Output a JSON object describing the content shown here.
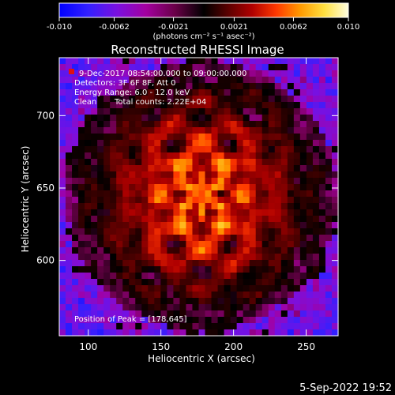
{
  "chart_data": {
    "type": "heatmap",
    "title": "Reconstructed RHESSI Image",
    "xlabel": "Heliocentric X (arcsec)",
    "ylabel": "Heliocentric Y (arcsec)",
    "xlim": [
      80,
      272
    ],
    "ylim": [
      548,
      740
    ],
    "xticks": [
      100,
      150,
      200,
      250
    ],
    "yticks": [
      600,
      650,
      700
    ],
    "colormap": "red-temperature",
    "colorbar": {
      "range": [
        -0.01,
        0.01
      ],
      "ticks": [
        "-0.010",
        "-0.0062",
        "-0.0021",
        "0.0021",
        "0.0062",
        "0.010"
      ],
      "unit_label": "(photons cm⁻² s⁻¹ asec⁻²)",
      "negative_colors": [
        "#0000ff",
        "#3320ff",
        "#7a10e0",
        "#a300a0",
        "#6a0048",
        "#000000"
      ],
      "positive_colors": [
        "#000000",
        "#5a0000",
        "#b00000",
        "#ff3800",
        "#ff9a00",
        "#ffe040",
        "#ffffe0"
      ]
    },
    "peak": {
      "x": 178,
      "y": 645
    },
    "annotations": {
      "time_range": "9-Dec-2017 08:54:00.000 to 09:00:00.000",
      "detectors": "Detectors: 3F 6F 8F, Att 0",
      "energy": "Energy Range: 6.0 - 12.0 keV",
      "clean_label": "Clean",
      "counts": "Total counts: 2.22E+04",
      "peak_text": "Position of Peak = [178,645]"
    },
    "legend_swatch_color": "#e01010",
    "grid": false
  },
  "footer": {
    "date_stamp": "5-Sep-2022 19:52"
  }
}
